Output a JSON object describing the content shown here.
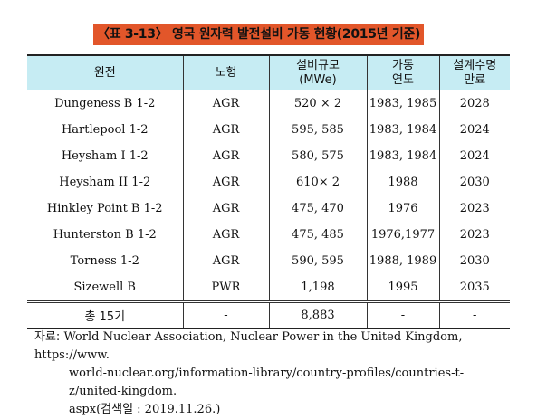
{
  "title": "〈표 3-13〉 영국 원자력 발전설비 가동 현황(2015년 기준)",
  "table": {
    "headers": [
      {
        "line1": "원전",
        "line2": ""
      },
      {
        "line1": "노형",
        "line2": ""
      },
      {
        "line1": "설비규모",
        "line2": "(MWe)"
      },
      {
        "line1": "가동",
        "line2": "연도"
      },
      {
        "line1": "설계수명",
        "line2": "만료"
      }
    ],
    "rows": [
      {
        "plant": "Dungeness B 1-2",
        "type": "AGR",
        "capacity": "520 × 2",
        "year": "1983, 1985",
        "expiry": "2028"
      },
      {
        "plant": "Hartlepool 1-2",
        "type": "AGR",
        "capacity": "595, 585",
        "year": "1983, 1984",
        "expiry": "2024"
      },
      {
        "plant": "Heysham I 1-2",
        "type": "AGR",
        "capacity": "580, 575",
        "year": "1983, 1984",
        "expiry": "2024"
      },
      {
        "plant": "Heysham II 1-2",
        "type": "AGR",
        "capacity": "610× 2",
        "year": "1988",
        "expiry": "2030"
      },
      {
        "plant": "Hinkley Point B 1-2",
        "type": "AGR",
        "capacity": "475, 470",
        "year": "1976",
        "expiry": "2023"
      },
      {
        "plant": "Hunterston B 1-2",
        "type": "AGR",
        "capacity": "475, 485",
        "year": "1976,1977",
        "expiry": "2023"
      },
      {
        "plant": "Torness 1-2",
        "type": "AGR",
        "capacity": "590, 595",
        "year": "1988, 1989",
        "expiry": "2030"
      },
      {
        "plant": "Sizewell B",
        "type": "PWR",
        "capacity": "1,198",
        "year": "1995",
        "expiry": "2035"
      }
    ],
    "total": {
      "plant": "총 15기",
      "type": "-",
      "capacity": "8,883",
      "year": "-",
      "expiry": "-"
    }
  },
  "source": {
    "label": "자료:",
    "line1": "World Nuclear Association, Nuclear Power in the United Kingdom, https://www.",
    "line2": "world-nuclear.org/information-library/country-profiles/countries-t-z/united-kingdom.",
    "line3": "aspx(검색일 : 2019.11.26.)"
  },
  "colors": {
    "title_bg": "#e2562a",
    "header_bg": "#c6ecf3"
  }
}
